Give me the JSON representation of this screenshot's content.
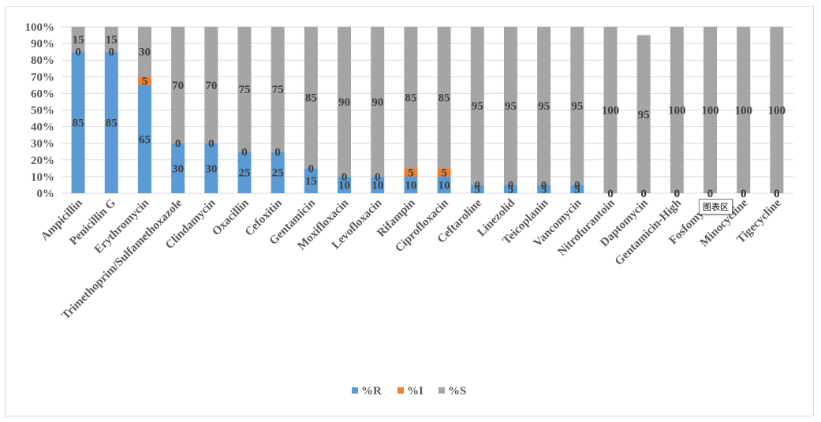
{
  "chart_data": {
    "type": "stacked-bar-100",
    "categories": [
      "Ampicillin",
      "Penicillin G",
      "Erythromycin",
      "Trimethoprim/Sulfamethoxazole",
      "Clindamycin",
      "Oxacillin",
      "Cefoxitin",
      "Gentamicin",
      "Moxifloxacin",
      "Levofloxacin",
      "Rifampin",
      "Ciprofloxacin",
      "Ceftaroline",
      "Linezolid",
      "Teicoplanin",
      "Vancomycin",
      "Nitrofurantoin",
      "Daptomycin",
      "Gentamicin-High",
      "Fosfomycin",
      "Minocycline",
      "Tigecycline"
    ],
    "series": [
      {
        "name": "%R",
        "color": "#5b9bd5",
        "values": [
          85,
          85,
          65,
          30,
          30,
          25,
          25,
          15,
          10,
          10,
          10,
          10,
          5,
          5,
          5,
          5,
          0,
          0,
          0,
          0,
          0,
          0
        ]
      },
      {
        "name": "%I",
        "color": "#ed7d31",
        "values": [
          0,
          0,
          5,
          0,
          0,
          0,
          0,
          0,
          0,
          0,
          5,
          5,
          0,
          0,
          0,
          0,
          0,
          0,
          0,
          0,
          0,
          0
        ]
      },
      {
        "name": "%S",
        "color": "#a5a5a5",
        "values": [
          15,
          15,
          30,
          70,
          70,
          75,
          75,
          85,
          90,
          90,
          85,
          85,
          95,
          95,
          95,
          95,
          100,
          95,
          100,
          100,
          100,
          100
        ]
      }
    ],
    "y_ticks": [
      "0%",
      "10%",
      "20%",
      "30%",
      "40%",
      "50%",
      "60%",
      "70%",
      "80%",
      "90%",
      "100%"
    ],
    "ylim": [
      0,
      100
    ],
    "grid": true,
    "legend": "bottom"
  },
  "tooltip": "图表区"
}
